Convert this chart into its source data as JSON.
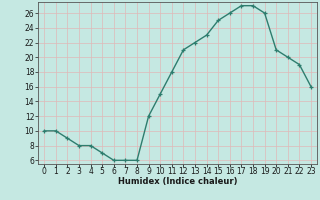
{
  "x": [
    0,
    1,
    2,
    3,
    4,
    5,
    6,
    7,
    8,
    9,
    10,
    11,
    12,
    13,
    14,
    15,
    16,
    17,
    18,
    19,
    20,
    21,
    22,
    23
  ],
  "y": [
    10,
    10,
    9,
    8,
    8,
    7,
    6,
    6,
    6,
    12,
    15,
    18,
    21,
    22,
    23,
    25,
    26,
    27,
    27,
    26,
    21,
    20,
    19,
    16
  ],
  "line_color": "#2e7d6e",
  "marker": "+",
  "marker_size": 3.5,
  "marker_linewidth": 0.9,
  "background_color": "#c5e8e2",
  "grid_color": "#e0b8b8",
  "xlabel": "Humidex (Indice chaleur)",
  "xlim": [
    -0.5,
    23.5
  ],
  "ylim": [
    5.5,
    27.5
  ],
  "yticks": [
    6,
    8,
    10,
    12,
    14,
    16,
    18,
    20,
    22,
    24,
    26
  ],
  "xtick_labels": [
    "0",
    "1",
    "2",
    "3",
    "4",
    "5",
    "6",
    "7",
    "8",
    "9",
    "10",
    "11",
    "12",
    "13",
    "14",
    "15",
    "16",
    "17",
    "18",
    "19",
    "20",
    "21",
    "22",
    "23"
  ],
  "font_color": "#1a1a1a",
  "label_fontsize": 6,
  "tick_fontsize": 5.5,
  "line_width": 1.0,
  "spine_color": "#555555"
}
